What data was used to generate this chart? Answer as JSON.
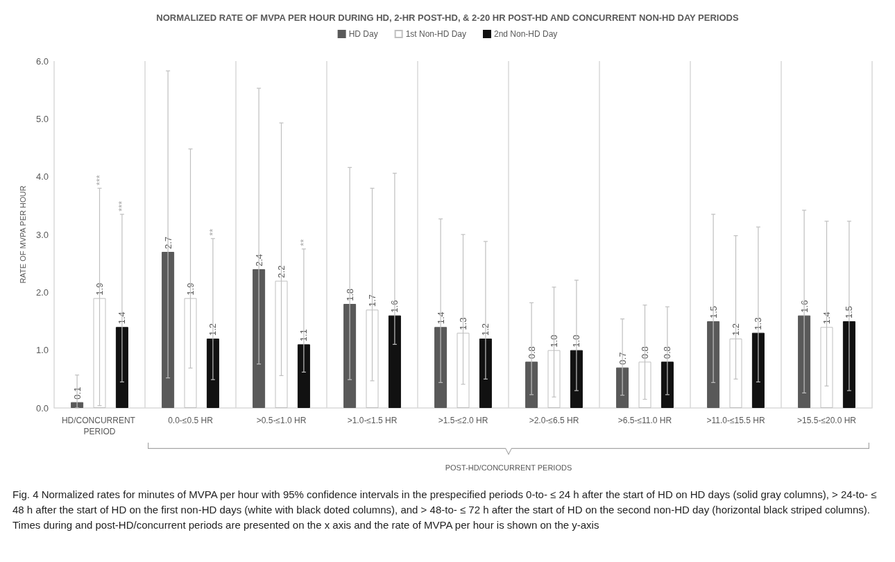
{
  "chart_data": {
    "type": "bar",
    "title": "NORMALIZED RATE OF MVPA PER HOUR DURING HD, 2-HR POST-HD, & 2-20 HR POST-HD AND CONCURRENT NON-HD DAY PERIODS",
    "ylabel": "RATE OF MVPA PER HOUR",
    "categories": [
      "HD/CONCURRENT PERIOD",
      "0.0-≤0.5 HR",
      ">0.5-≤1.0 HR",
      ">1.0-≤1.5 HR",
      ">1.5-≤2.0 HR",
      ">2.0-≤6.5 HR",
      ">6.5-≤11.0 HR",
      ">11.0-≤15.5 HR",
      ">15.5-≤20.0 HR"
    ],
    "series": [
      {
        "name": "HD Day",
        "color": "#595959",
        "values": [
          0.1,
          2.7,
          2.4,
          1.8,
          1.4,
          0.8,
          0.7,
          1.5,
          1.6
        ],
        "value_labels": [
          "0.1",
          "2.7",
          "2.4",
          "1.8",
          "1.4",
          "0.8",
          "0.7",
          "1.5",
          "1.6"
        ],
        "errors": [
          [
            0.0,
            0.57
          ],
          [
            0.52,
            5.83
          ],
          [
            0.76,
            5.53
          ],
          [
            0.49,
            4.16
          ],
          [
            0.44,
            3.27
          ],
          [
            0.23,
            1.82
          ],
          [
            0.22,
            1.54
          ],
          [
            0.44,
            3.35
          ],
          [
            0.26,
            3.42
          ]
        ]
      },
      {
        "name": "1st Non-HD Day",
        "color": "#ffffff",
        "values": [
          1.9,
          1.9,
          2.2,
          1.7,
          1.3,
          1.0,
          0.8,
          1.2,
          1.4
        ],
        "value_labels": [
          "1.9",
          "1.9",
          "2.2",
          "1.7",
          "1.3",
          "1.0",
          "0.8",
          "1.2",
          "1.4"
        ],
        "errors": [
          [
            0.04,
            3.8
          ],
          [
            0.69,
            4.48
          ],
          [
            0.56,
            4.93
          ],
          [
            0.47,
            3.8
          ],
          [
            0.41,
            3.0
          ],
          [
            0.19,
            2.09
          ],
          [
            0.15,
            1.78
          ],
          [
            0.5,
            2.98
          ],
          [
            0.38,
            3.23
          ]
        ]
      },
      {
        "name": "2nd Non-HD Day",
        "color": "#111111",
        "values": [
          1.4,
          1.2,
          1.1,
          1.6,
          1.2,
          1.0,
          0.8,
          1.3,
          1.5
        ],
        "value_labels": [
          "1.4",
          "1.2",
          "1.1",
          "1.6",
          "1.2",
          "1.0",
          "0.8",
          "1.3",
          "1.5"
        ],
        "errors": [
          [
            0.45,
            3.35
          ],
          [
            0.49,
            2.93
          ],
          [
            0.62,
            2.75
          ],
          [
            1.1,
            4.06
          ],
          [
            0.5,
            2.88
          ],
          [
            0.3,
            2.21
          ],
          [
            0.23,
            1.75
          ],
          [
            0.45,
            3.13
          ],
          [
            0.3,
            3.23
          ]
        ]
      }
    ],
    "ylim": [
      0,
      6
    ],
    "yticks": [
      {
        "value": 0,
        "label": "0.0"
      },
      {
        "value": 1,
        "label": "1.0"
      },
      {
        "value": 2,
        "label": "2.0"
      },
      {
        "value": 3,
        "label": "3.0"
      },
      {
        "value": 4,
        "label": "4.0"
      },
      {
        "value": 5,
        "label": "5.0"
      },
      {
        "value": 6,
        "label": "6.0"
      }
    ],
    "grid": "x",
    "legend": "top",
    "annotations": [
      {
        "text": "***",
        "x": "HD/CONCURRENT PERIOD",
        "y": 3.8
      },
      {
        "text": "***",
        "x": "HD/CONCURRENT PERIOD",
        "y": 3.35
      },
      {
        "text": "**",
        "x": "0.0-≤0.5 HR",
        "y": 2.93
      },
      {
        "text": "**",
        "x": ">0.5-≤1.0 HR",
        "y": 2.75
      },
      "POST-HD/CONCURRENT PERIODS",
      "Fig. 4 Normalized rates for minutes of MVPA per hour with 95% confidence intervals in the prespecified periods 0-to- ≤ 24 h after the start of HD on HD days (solid gray columns), > 24-to- ≤ 48 h after the start of HD on the first non-HD days (white with black doted columns), and > 48-to- ≤ 72 h after the start of HD on the second non-HD day (horizontal black striped columns). Times during and post-HD/concurrent periods are presented on the x axis and the rate of MVPA per hour is shown on the y-axis"
    ]
  }
}
